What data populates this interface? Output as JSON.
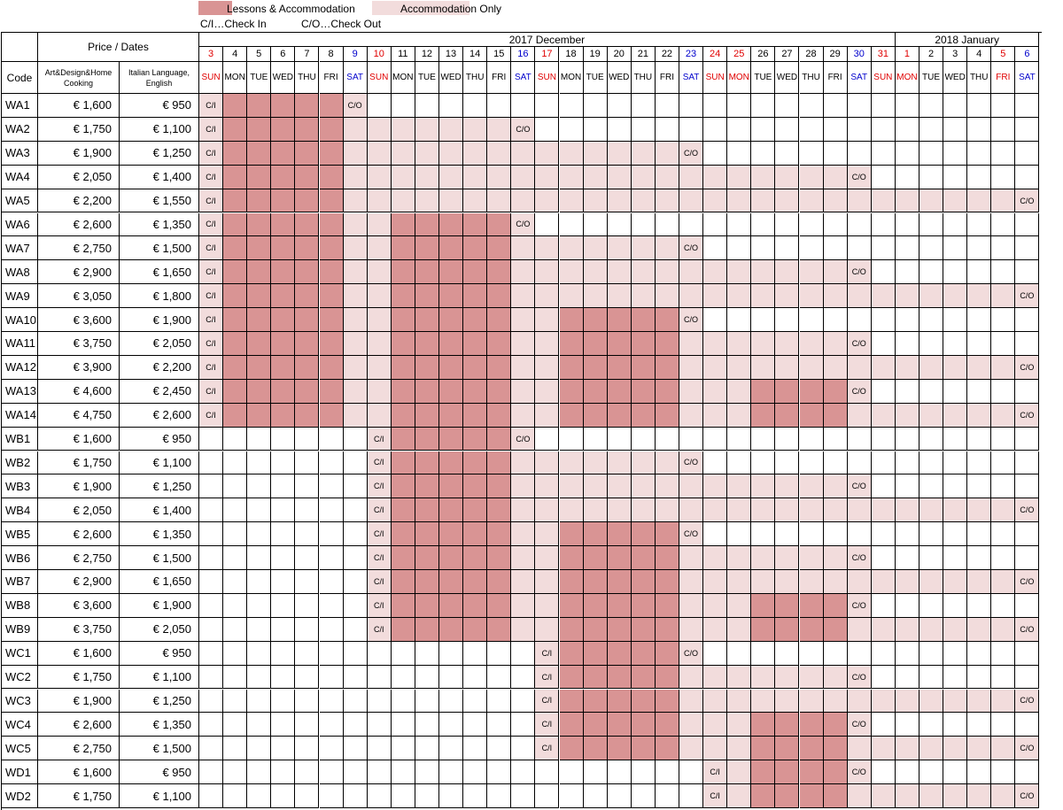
{
  "legend": {
    "lessons_label": "Lessons & Accommodation",
    "accom_label": "Accommodation Only",
    "checkin_label": "C/I…Check In",
    "checkout_label": "C/O…Check Out",
    "lessons_color": "#d99494",
    "accom_color": "#f2dcdc"
  },
  "header": {
    "price_dates": "Price / Dates",
    "code": "Code",
    "col_art": "Art&Design&Home Cooking",
    "col_italian": "Italian Language, English",
    "month_dec": "2017 December",
    "month_jan": "2018 January",
    "ci_text": "C/I",
    "co_text": "C/O"
  },
  "dates": [
    {
      "d": "3",
      "w": "SUN",
      "c": "red"
    },
    {
      "d": "4",
      "w": "MON",
      "c": ""
    },
    {
      "d": "5",
      "w": "TUE",
      "c": ""
    },
    {
      "d": "6",
      "w": "WED",
      "c": ""
    },
    {
      "d": "7",
      "w": "THU",
      "c": ""
    },
    {
      "d": "8",
      "w": "FRI",
      "c": ""
    },
    {
      "d": "9",
      "w": "SAT",
      "c": "blue"
    },
    {
      "d": "10",
      "w": "SUN",
      "c": "red"
    },
    {
      "d": "11",
      "w": "MON",
      "c": ""
    },
    {
      "d": "12",
      "w": "TUE",
      "c": ""
    },
    {
      "d": "13",
      "w": "WED",
      "c": ""
    },
    {
      "d": "14",
      "w": "THU",
      "c": ""
    },
    {
      "d": "15",
      "w": "FRI",
      "c": ""
    },
    {
      "d": "16",
      "w": "SAT",
      "c": "blue"
    },
    {
      "d": "17",
      "w": "SUN",
      "c": "red"
    },
    {
      "d": "18",
      "w": "MON",
      "c": ""
    },
    {
      "d": "19",
      "w": "TUE",
      "c": ""
    },
    {
      "d": "20",
      "w": "WED",
      "c": ""
    },
    {
      "d": "21",
      "w": "THU",
      "c": ""
    },
    {
      "d": "22",
      "w": "FRI",
      "c": ""
    },
    {
      "d": "23",
      "w": "SAT",
      "c": "blue"
    },
    {
      "d": "24",
      "w": "SUN",
      "c": "red"
    },
    {
      "d": "25",
      "w": "MON",
      "c": "red"
    },
    {
      "d": "26",
      "w": "TUE",
      "c": ""
    },
    {
      "d": "27",
      "w": "WED",
      "c": ""
    },
    {
      "d": "28",
      "w": "THU",
      "c": ""
    },
    {
      "d": "29",
      "w": "FRI",
      "c": ""
    },
    {
      "d": "30",
      "w": "SAT",
      "c": "blue"
    },
    {
      "d": "31",
      "w": "SUN",
      "c": "red"
    },
    {
      "d": "1",
      "w": "MON",
      "c": "red"
    },
    {
      "d": "2",
      "w": "TUE",
      "c": ""
    },
    {
      "d": "3",
      "w": "WED",
      "c": ""
    },
    {
      "d": "4",
      "w": "THU",
      "c": ""
    },
    {
      "d": "5",
      "w": "FRI",
      "c": "red"
    },
    {
      "d": "6",
      "w": "SAT",
      "c": "blue"
    }
  ],
  "rows": [
    {
      "code": "WA1",
      "art": "€ 1,600",
      "ital": "€ 950",
      "ci": 0,
      "co": 6,
      "lessons": [
        [
          1,
          5
        ]
      ]
    },
    {
      "code": "WA2",
      "art": "€ 1,750",
      "ital": "€ 1,100",
      "ci": 0,
      "co": 13,
      "lessons": [
        [
          1,
          5
        ]
      ]
    },
    {
      "code": "WA3",
      "art": "€ 1,900",
      "ital": "€ 1,250",
      "ci": 0,
      "co": 20,
      "lessons": [
        [
          1,
          5
        ]
      ]
    },
    {
      "code": "WA4",
      "art": "€ 2,050",
      "ital": "€ 1,400",
      "ci": 0,
      "co": 27,
      "lessons": [
        [
          1,
          5
        ]
      ]
    },
    {
      "code": "WA5",
      "art": "€ 2,200",
      "ital": "€ 1,550",
      "ci": 0,
      "co": 34,
      "lessons": [
        [
          1,
          5
        ]
      ]
    },
    {
      "code": "WA6",
      "art": "€ 2,600",
      "ital": "€ 1,350",
      "ci": 0,
      "co": 13,
      "lessons": [
        [
          1,
          5
        ],
        [
          8,
          12
        ]
      ]
    },
    {
      "code": "WA7",
      "art": "€ 2,750",
      "ital": "€ 1,500",
      "ci": 0,
      "co": 20,
      "lessons": [
        [
          1,
          5
        ],
        [
          8,
          12
        ]
      ]
    },
    {
      "code": "WA8",
      "art": "€ 2,900",
      "ital": "€ 1,650",
      "ci": 0,
      "co": 27,
      "lessons": [
        [
          1,
          5
        ],
        [
          8,
          12
        ]
      ]
    },
    {
      "code": "WA9",
      "art": "€ 3,050",
      "ital": "€ 1,800",
      "ci": 0,
      "co": 34,
      "lessons": [
        [
          1,
          5
        ],
        [
          8,
          12
        ]
      ]
    },
    {
      "code": "WA10",
      "art": "€ 3,600",
      "ital": "€ 1,900",
      "ci": 0,
      "co": 20,
      "lessons": [
        [
          1,
          5
        ],
        [
          8,
          12
        ],
        [
          15,
          19
        ]
      ]
    },
    {
      "code": "WA11",
      "art": "€ 3,750",
      "ital": "€ 2,050",
      "ci": 0,
      "co": 27,
      "lessons": [
        [
          1,
          5
        ],
        [
          8,
          12
        ],
        [
          15,
          19
        ]
      ]
    },
    {
      "code": "WA12",
      "art": "€ 3,900",
      "ital": "€ 2,200",
      "ci": 0,
      "co": 34,
      "lessons": [
        [
          1,
          5
        ],
        [
          8,
          12
        ],
        [
          15,
          19
        ]
      ]
    },
    {
      "code": "WA13",
      "art": "€ 4,600",
      "ital": "€ 2,450",
      "ci": 0,
      "co": 27,
      "lessons": [
        [
          1,
          5
        ],
        [
          8,
          12
        ],
        [
          15,
          19
        ],
        [
          23,
          26
        ]
      ]
    },
    {
      "code": "WA14",
      "art": "€ 4,750",
      "ital": "€ 2,600",
      "ci": 0,
      "co": 34,
      "lessons": [
        [
          1,
          5
        ],
        [
          8,
          12
        ],
        [
          15,
          19
        ],
        [
          23,
          26
        ]
      ]
    },
    {
      "code": "WB1",
      "art": "€ 1,600",
      "ital": "€ 950",
      "ci": 7,
      "co": 13,
      "lessons": [
        [
          8,
          12
        ]
      ]
    },
    {
      "code": "WB2",
      "art": "€ 1,750",
      "ital": "€ 1,100",
      "ci": 7,
      "co": 20,
      "lessons": [
        [
          8,
          12
        ]
      ]
    },
    {
      "code": "WB3",
      "art": "€ 1,900",
      "ital": "€ 1,250",
      "ci": 7,
      "co": 27,
      "lessons": [
        [
          8,
          12
        ]
      ]
    },
    {
      "code": "WB4",
      "art": "€ 2,050",
      "ital": "€ 1,400",
      "ci": 7,
      "co": 34,
      "lessons": [
        [
          8,
          12
        ]
      ]
    },
    {
      "code": "WB5",
      "art": "€ 2,600",
      "ital": "€ 1,350",
      "ci": 7,
      "co": 20,
      "lessons": [
        [
          8,
          12
        ],
        [
          15,
          19
        ]
      ]
    },
    {
      "code": "WB6",
      "art": "€ 2,750",
      "ital": "€ 1,500",
      "ci": 7,
      "co": 27,
      "lessons": [
        [
          8,
          12
        ],
        [
          15,
          19
        ]
      ]
    },
    {
      "code": "WB7",
      "art": "€ 2,900",
      "ital": "€ 1,650",
      "ci": 7,
      "co": 34,
      "lessons": [
        [
          8,
          12
        ],
        [
          15,
          19
        ]
      ]
    },
    {
      "code": "WB8",
      "art": "€ 3,600",
      "ital": "€ 1,900",
      "ci": 7,
      "co": 27,
      "lessons": [
        [
          8,
          12
        ],
        [
          15,
          19
        ],
        [
          23,
          26
        ]
      ]
    },
    {
      "code": "WB9",
      "art": "€ 3,750",
      "ital": "€ 2,050",
      "ci": 7,
      "co": 34,
      "lessons": [
        [
          8,
          12
        ],
        [
          15,
          19
        ],
        [
          23,
          26
        ]
      ]
    },
    {
      "code": "WC1",
      "art": "€ 1,600",
      "ital": "€ 950",
      "ci": 14,
      "co": 20,
      "lessons": [
        [
          15,
          19
        ]
      ]
    },
    {
      "code": "WC2",
      "art": "€ 1,750",
      "ital": "€ 1,100",
      "ci": 14,
      "co": 27,
      "lessons": [
        [
          15,
          19
        ]
      ]
    },
    {
      "code": "WC3",
      "art": "€ 1,900",
      "ital": "€ 1,250",
      "ci": 14,
      "co": 34,
      "lessons": [
        [
          15,
          19
        ]
      ]
    },
    {
      "code": "WC4",
      "art": "€ 2,600",
      "ital": "€ 1,350",
      "ci": 14,
      "co": 27,
      "lessons": [
        [
          15,
          19
        ],
        [
          23,
          26
        ]
      ]
    },
    {
      "code": "WC5",
      "art": "€ 2,750",
      "ital": "€ 1,500",
      "ci": 14,
      "co": 34,
      "lessons": [
        [
          15,
          19
        ],
        [
          23,
          26
        ]
      ]
    },
    {
      "code": "WD1",
      "art": "€ 1,600",
      "ital": "€ 950",
      "ci": 21,
      "co": 27,
      "lessons": [
        [
          23,
          26
        ]
      ]
    },
    {
      "code": "WD2",
      "art": "€ 1,750",
      "ital": "€ 1,100",
      "ci": 21,
      "co": 34,
      "lessons": [
        [
          23,
          26
        ]
      ]
    }
  ]
}
